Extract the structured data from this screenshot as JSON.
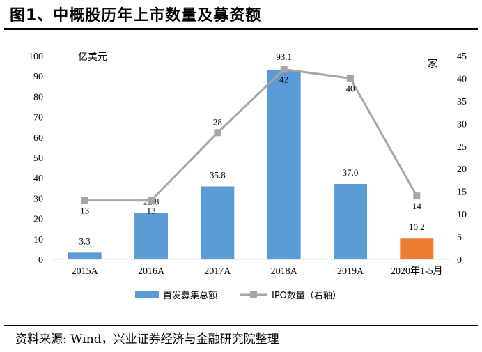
{
  "figure_title": "图1、中概股历年上市数量及募资额",
  "source_note": "资料来源: Wind，兴业证券经济与金融研究院整理",
  "chart_data": {
    "type": "bar",
    "categories": [
      "2015A",
      "2016A",
      "2017A",
      "2018A",
      "2019A",
      "2020年1-5月"
    ],
    "series": [
      {
        "name": "首发募集总额",
        "type": "bar",
        "axis": "left",
        "values": [
          3.3,
          22.8,
          35.8,
          93.1,
          37.0,
          10.2
        ],
        "value_labels": [
          "3.3",
          "22.8",
          "35.8",
          "93.1",
          "37.0",
          "10.2"
        ],
        "colors": [
          "#5b9bd5",
          "#5b9bd5",
          "#5b9bd5",
          "#5b9bd5",
          "#5b9bd5",
          "#ed7d31"
        ]
      },
      {
        "name": "IPO数量（右轴）",
        "type": "line",
        "axis": "right",
        "values": [
          13,
          13,
          28,
          42,
          40,
          14
        ],
        "value_labels": [
          "13",
          "13",
          "28",
          "42",
          "40",
          "14"
        ],
        "color": "#a5a5a5"
      }
    ],
    "y_left": {
      "unit_label": "亿美元",
      "ylim": [
        0,
        100
      ],
      "ticks": [
        "0",
        "10",
        "20",
        "30",
        "40",
        "50",
        "60",
        "70",
        "80",
        "90",
        "100"
      ]
    },
    "y_right": {
      "unit_label": "家",
      "ylim": [
        0,
        45
      ],
      "ticks": [
        "0",
        "5",
        "10",
        "15",
        "20",
        "25",
        "30",
        "35",
        "40",
        "45"
      ]
    },
    "legend_position": "bottom",
    "grid": false
  }
}
